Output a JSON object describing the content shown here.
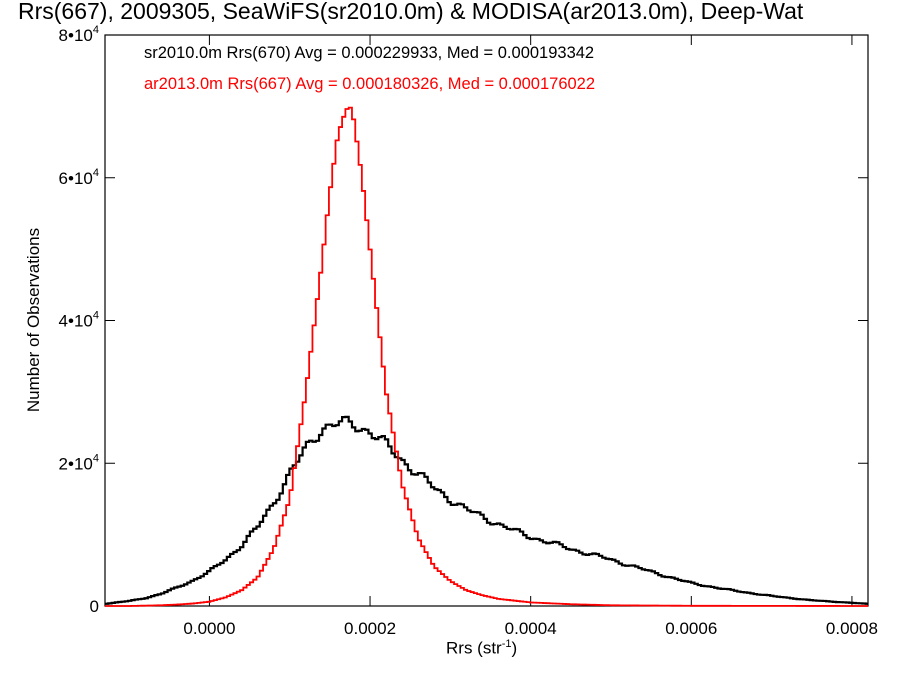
{
  "chart_data": {
    "type": "line",
    "title": "Rrs(667), 2009305, SeaWiFS(sr2010.0m) & MODISA(ar2013.0m), Deep-Wat",
    "xlabel": "Rrs (str",
    "xlabel_sup": "-1",
    "xlabel_close": ")",
    "ylabel": "Number of Observations",
    "xlim": [
      -0.00013,
      0.00082
    ],
    "ylim": [
      0,
      80000
    ],
    "x_ticks": [
      {
        "value": 0.0,
        "label": "0.0000"
      },
      {
        "value": 0.0002,
        "label": "0.0002"
      },
      {
        "value": 0.0004,
        "label": "0.0004"
      },
      {
        "value": 0.0006,
        "label": "0.0006"
      },
      {
        "value": 0.0008,
        "label": "0.0008"
      }
    ],
    "y_ticks": [
      {
        "value": 0,
        "mant": "0",
        "exp": ""
      },
      {
        "value": 20000,
        "mant": "2•10",
        "exp": "4"
      },
      {
        "value": 40000,
        "mant": "4•10",
        "exp": "4"
      },
      {
        "value": 60000,
        "mant": "6•10",
        "exp": "4"
      },
      {
        "value": 80000,
        "mant": "8•10",
        "exp": "4"
      }
    ],
    "grid": false,
    "legend_position": "top-left",
    "series": [
      {
        "name": "sr2010.0m Rrs(670)",
        "legend_text": "sr2010.0m Rrs(670) Avg = 0.000229933, Med = 0.000193342",
        "color": "#000000",
        "step": true,
        "x": [
          -0.00013,
          -0.0001,
          -8e-05,
          -6e-05,
          -4e-05,
          -2e-05,
          0.0,
          2e-05,
          4e-05,
          6e-05,
          8e-05,
          0.0001,
          0.00012,
          0.00014,
          0.00016,
          0.00018,
          0.0002,
          0.00022,
          0.00024,
          0.00026,
          0.00028,
          0.0003,
          0.00032,
          0.00034,
          0.00036,
          0.00038,
          0.0004,
          0.00045,
          0.0005,
          0.00055,
          0.0006,
          0.00065,
          0.0007,
          0.00075,
          0.00082
        ],
        "y": [
          300,
          700,
          1100,
          1700,
          2600,
          3600,
          4800,
          6500,
          8500,
          11000,
          14500,
          18500,
          22000,
          25000,
          25500,
          25500,
          24500,
          22500,
          20500,
          18500,
          16500,
          15000,
          13500,
          12500,
          11500,
          10500,
          9700,
          8000,
          6500,
          4800,
          3200,
          2200,
          1400,
          800,
          300
        ]
      },
      {
        "name": "ar2013.0m Rrs(667)",
        "legend_text": "ar2013.0m Rrs(667) Avg = 0.000180326, Med = 0.000176022",
        "color": "#ff0000",
        "step": true,
        "x": [
          -0.00013,
          -0.0001,
          -8e-05,
          -6e-05,
          -4e-05,
          -2e-05,
          0.0,
          2e-05,
          4e-05,
          6e-05,
          8e-05,
          0.0001,
          0.00012,
          0.00014,
          0.00015,
          0.00016,
          0.00017,
          0.000175,
          0.00018,
          0.00019,
          0.0002,
          0.00021,
          0.00022,
          0.00024,
          0.00026,
          0.00028,
          0.0003,
          0.00032,
          0.00034,
          0.00036,
          0.0004,
          0.00045,
          0.0005,
          0.0006,
          0.00082
        ],
        "y": [
          0,
          0,
          50,
          100,
          200,
          350,
          600,
          1200,
          2200,
          4000,
          8000,
          15000,
          30000,
          48000,
          58000,
          66000,
          69500,
          70000,
          68000,
          60000,
          50000,
          40000,
          30000,
          17000,
          9500,
          5500,
          3500,
          2200,
          1500,
          1000,
          500,
          250,
          100,
          30,
          0
        ]
      }
    ]
  }
}
